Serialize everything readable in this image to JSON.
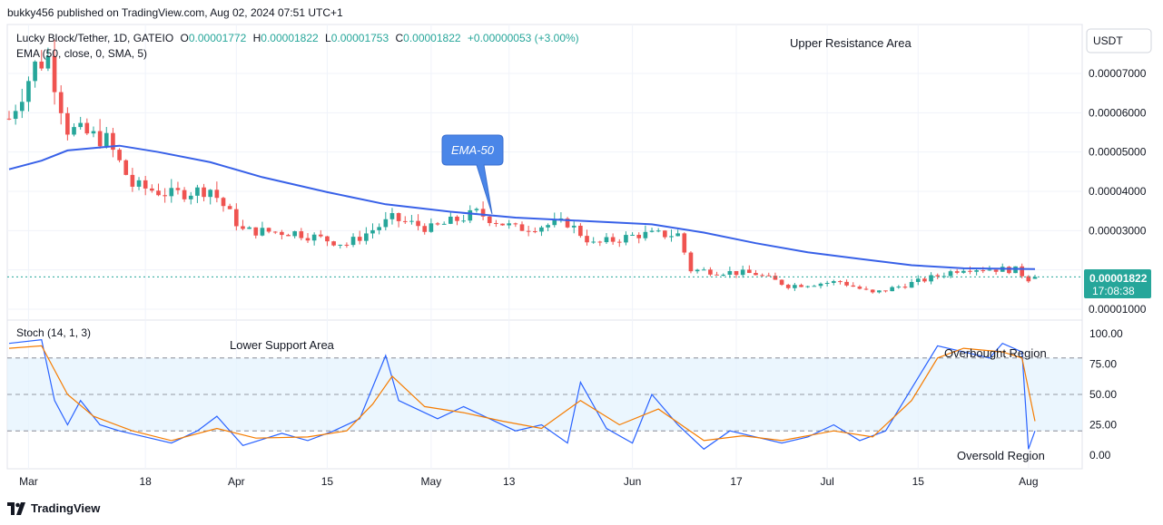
{
  "header": {
    "published_line": "bukky456 published on TradingView.com, Aug 02, 2024 07:51 UTC+1"
  },
  "legend": {
    "symbol": "Lucky Block/Tether, 1D, GATEIO",
    "o_label": "O",
    "o_value": "0.00001772",
    "h_label": "H",
    "h_value": "0.00001822",
    "l_label": "L",
    "l_value": "0.00001753",
    "c_label": "C",
    "c_value": "0.00001822",
    "change": "+0.00000053 (+3.00%)",
    "ema_label": "EMA (50, close, 0, SMA, 5)",
    "stoch_label": "Stoch (14, 1, 3)"
  },
  "annotations": {
    "upper_resistance": "Upper Resistance Area",
    "lower_support": "Lower Support Area",
    "ema_callout": "EMA-50",
    "overbought": "Overbought Region",
    "oversold": "Oversold Region"
  },
  "price_axis": {
    "currency": "USDT",
    "ticks": [
      "0.00007000",
      "0.00006000",
      "0.00005000",
      "0.00004000",
      "0.00003000",
      "0.00001000"
    ],
    "last_price": "0.00001822",
    "countdown": "17:08:38"
  },
  "stoch_axis": {
    "ticks": [
      "100.00",
      "75.00",
      "50.00",
      "25.00",
      "0.00"
    ]
  },
  "time_axis": {
    "labels": [
      "Mar",
      "18",
      "Apr",
      "15",
      "May",
      "13",
      "Jun",
      "17",
      "Jul",
      "15",
      "Aug"
    ]
  },
  "footer": {
    "brand": "TradingView"
  },
  "colors": {
    "up": "#26a69a",
    "down": "#ef5350",
    "ema": "#3861e8",
    "stoch_k": "#2962ff",
    "stoch_d": "#f57c00",
    "band_fill": "#e3f2fd",
    "callout": "#4a86e8"
  },
  "chart_data": [
    {
      "type": "candlestick",
      "title": "Lucky Block/Tether, 1D, GATEIO",
      "x_range": [
        "2024-02-26",
        "2024-08-02"
      ],
      "ylim": [
        9.5e-06,
        7.8e-06
      ],
      "series": [
        {
          "name": "EMA (50, close, 0, SMA, 5)",
          "points": [
            [
              "2024-02-26",
              4.56e-05
            ],
            [
              "2024-03-02",
              4.78e-05
            ],
            [
              "2024-03-06",
              5.04e-05
            ],
            [
              "2024-03-14",
              5.16e-05
            ],
            [
              "2024-03-20",
              5e-05
            ],
            [
              "2024-03-28",
              4.74e-05
            ],
            [
              "2024-04-05",
              4.36e-05
            ],
            [
              "2024-04-15",
              3.98e-05
            ],
            [
              "2024-04-24",
              3.67e-05
            ],
            [
              "2024-05-04",
              3.48e-05
            ],
            [
              "2024-05-14",
              3.33e-05
            ],
            [
              "2024-05-24",
              3.25e-05
            ],
            [
              "2024-06-04",
              3.16e-05
            ],
            [
              "2024-06-12",
              2.95e-05
            ],
            [
              "2024-06-20",
              2.68e-05
            ],
            [
              "2024-06-28",
              2.45e-05
            ],
            [
              "2024-07-06",
              2.28e-05
            ],
            [
              "2024-07-14",
              2.12e-05
            ],
            [
              "2024-07-22",
              2.04e-05
            ],
            [
              "2024-08-02",
              2.02e-05
            ]
          ]
        }
      ],
      "ohlc_keypoints": [
        [
          "2024-02-26",
          5.85e-05
        ],
        [
          "2024-03-01",
          7.2e-05
        ],
        [
          "2024-03-03",
          7.4e-05
        ],
        [
          "2024-03-06",
          5.6e-05
        ],
        [
          "2024-03-12",
          5.3e-05
        ],
        [
          "2024-03-16",
          4.15e-05
        ],
        [
          "2024-03-22",
          3.92e-05
        ],
        [
          "2024-03-28",
          4.06e-05
        ],
        [
          "2024-04-02",
          3e-05
        ],
        [
          "2024-04-10",
          2.95e-05
        ],
        [
          "2024-04-18",
          2.65e-05
        ],
        [
          "2024-04-25",
          3.3e-05
        ],
        [
          "2024-05-01",
          3.05e-05
        ],
        [
          "2024-05-08",
          3.45e-05
        ],
        [
          "2024-05-14",
          3.05e-05
        ],
        [
          "2024-05-22",
          3.2e-05
        ],
        [
          "2024-05-26",
          2.65e-05
        ],
        [
          "2024-06-02",
          2.9e-05
        ],
        [
          "2024-06-08",
          2.9e-05
        ],
        [
          "2024-06-10",
          2e-05
        ],
        [
          "2024-06-20",
          1.9e-05
        ],
        [
          "2024-06-25",
          1.6e-05
        ],
        [
          "2024-07-03",
          1.7e-05
        ],
        [
          "2024-07-08",
          1.4e-05
        ],
        [
          "2024-07-16",
          1.75e-05
        ],
        [
          "2024-07-22",
          2.05e-05
        ],
        [
          "2024-07-30",
          2e-05
        ],
        [
          "2024-08-01",
          1.77e-05
        ],
        [
          "2024-08-02",
          1.82e-05
        ]
      ]
    },
    {
      "type": "line",
      "title": "Stoch (14, 1, 3)",
      "ylim": [
        0,
        100
      ],
      "bands": [
        20,
        50,
        80
      ],
      "series": [
        {
          "name": "%K",
          "points": [
            [
              "2024-02-26",
              92
            ],
            [
              "2024-03-02",
              95
            ],
            [
              "2024-03-04",
              45
            ],
            [
              "2024-03-06",
              25
            ],
            [
              "2024-03-08",
              45
            ],
            [
              "2024-03-11",
              25
            ],
            [
              "2024-03-14",
              20
            ],
            [
              "2024-03-18",
              15
            ],
            [
              "2024-03-22",
              10
            ],
            [
              "2024-03-26",
              20
            ],
            [
              "2024-03-29",
              32
            ],
            [
              "2024-04-02",
              8
            ],
            [
              "2024-04-08",
              18
            ],
            [
              "2024-04-12",
              12
            ],
            [
              "2024-04-16",
              20
            ],
            [
              "2024-04-20",
              30
            ],
            [
              "2024-04-24",
              82
            ],
            [
              "2024-04-26",
              45
            ],
            [
              "2024-05-02",
              30
            ],
            [
              "2024-05-06",
              40
            ],
            [
              "2024-05-10",
              30
            ],
            [
              "2024-05-14",
              20
            ],
            [
              "2024-05-18",
              25
            ],
            [
              "2024-05-22",
              10
            ],
            [
              "2024-05-24",
              60
            ],
            [
              "2024-05-28",
              22
            ],
            [
              "2024-06-01",
              10
            ],
            [
              "2024-06-04",
              50
            ],
            [
              "2024-06-08",
              25
            ],
            [
              "2024-06-12",
              5
            ],
            [
              "2024-06-16",
              20
            ],
            [
              "2024-06-20",
              15
            ],
            [
              "2024-06-24",
              10
            ],
            [
              "2024-06-28",
              15
            ],
            [
              "2024-07-02",
              25
            ],
            [
              "2024-07-06",
              12
            ],
            [
              "2024-07-10",
              20
            ],
            [
              "2024-07-14",
              55
            ],
            [
              "2024-07-18",
              90
            ],
            [
              "2024-07-22",
              85
            ],
            [
              "2024-07-26",
              80
            ],
            [
              "2024-07-28",
              92
            ],
            [
              "2024-07-31",
              85
            ],
            [
              "2024-08-01",
              5
            ],
            [
              "2024-08-02",
              20
            ]
          ]
        },
        {
          "name": "%D",
          "points": [
            [
              "2024-02-26",
              88
            ],
            [
              "2024-03-02",
              90
            ],
            [
              "2024-03-06",
              50
            ],
            [
              "2024-03-10",
              32
            ],
            [
              "2024-03-16",
              20
            ],
            [
              "2024-03-22",
              12
            ],
            [
              "2024-03-29",
              22
            ],
            [
              "2024-04-04",
              14
            ],
            [
              "2024-04-12",
              15
            ],
            [
              "2024-04-18",
              20
            ],
            [
              "2024-04-22",
              42
            ],
            [
              "2024-04-25",
              65
            ],
            [
              "2024-04-30",
              40
            ],
            [
              "2024-05-06",
              35
            ],
            [
              "2024-05-12",
              28
            ],
            [
              "2024-05-18",
              22
            ],
            [
              "2024-05-24",
              45
            ],
            [
              "2024-05-30",
              25
            ],
            [
              "2024-06-05",
              38
            ],
            [
              "2024-06-12",
              12
            ],
            [
              "2024-06-18",
              16
            ],
            [
              "2024-06-24",
              12
            ],
            [
              "2024-07-02",
              20
            ],
            [
              "2024-07-08",
              15
            ],
            [
              "2024-07-14",
              45
            ],
            [
              "2024-07-18",
              80
            ],
            [
              "2024-07-22",
              88
            ],
            [
              "2024-07-28",
              85
            ],
            [
              "2024-07-31",
              80
            ],
            [
              "2024-08-02",
              28
            ]
          ]
        }
      ]
    }
  ]
}
